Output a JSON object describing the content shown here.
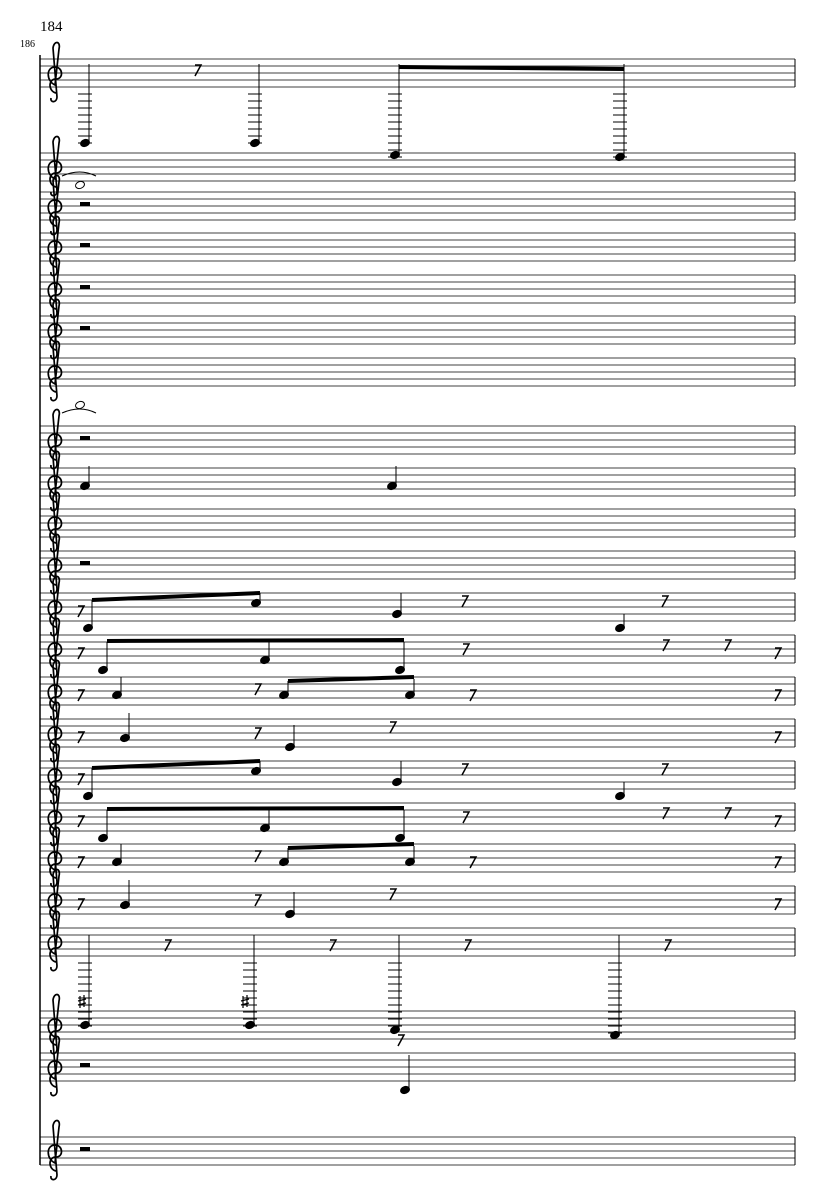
{
  "header": {
    "page_number": "184",
    "measure_number": "186"
  }
}
